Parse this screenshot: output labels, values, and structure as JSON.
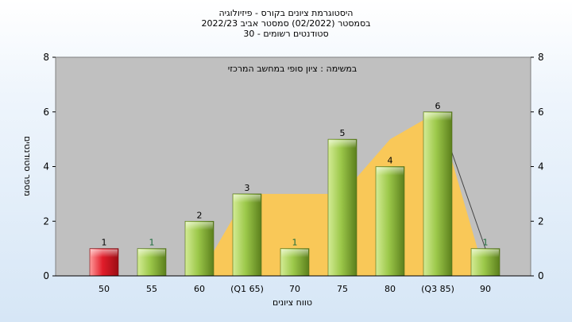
{
  "title_lines": [
    "היסטוגרמת ציונים בקורס - פיזיולוגיה",
    "בסמסטר  (02/2022)  סמסטר אביב 2022/23",
    "סטודנטים רשומים - 30"
  ],
  "colors": {
    "bar_normal": "#8fbe3c",
    "bar_highlight": "#e11d2a",
    "area_fill": "#ffc94d",
    "plot_bg": "#c0c0c0"
  },
  "chart_data": {
    "type": "bar",
    "title": "",
    "annotation": "במשימה : ציון סופי במחשב המרכזי",
    "xlabel": "טווח ציונים",
    "ylabel": "מספר סטודנטים",
    "ylim": [
      0,
      8
    ],
    "yticks": [
      0,
      2,
      4,
      6,
      8
    ],
    "grid": false,
    "categories": [
      "50",
      "55",
      "60",
      "(Q1 65)",
      "70",
      "75",
      "80",
      "(Q3 85)",
      "90"
    ],
    "values": [
      1,
      1,
      2,
      3,
      1,
      5,
      4,
      6,
      1
    ],
    "highlight_index": 0,
    "area_series": [
      0,
      0,
      0,
      3,
      3,
      3,
      5,
      6,
      0
    ]
  }
}
